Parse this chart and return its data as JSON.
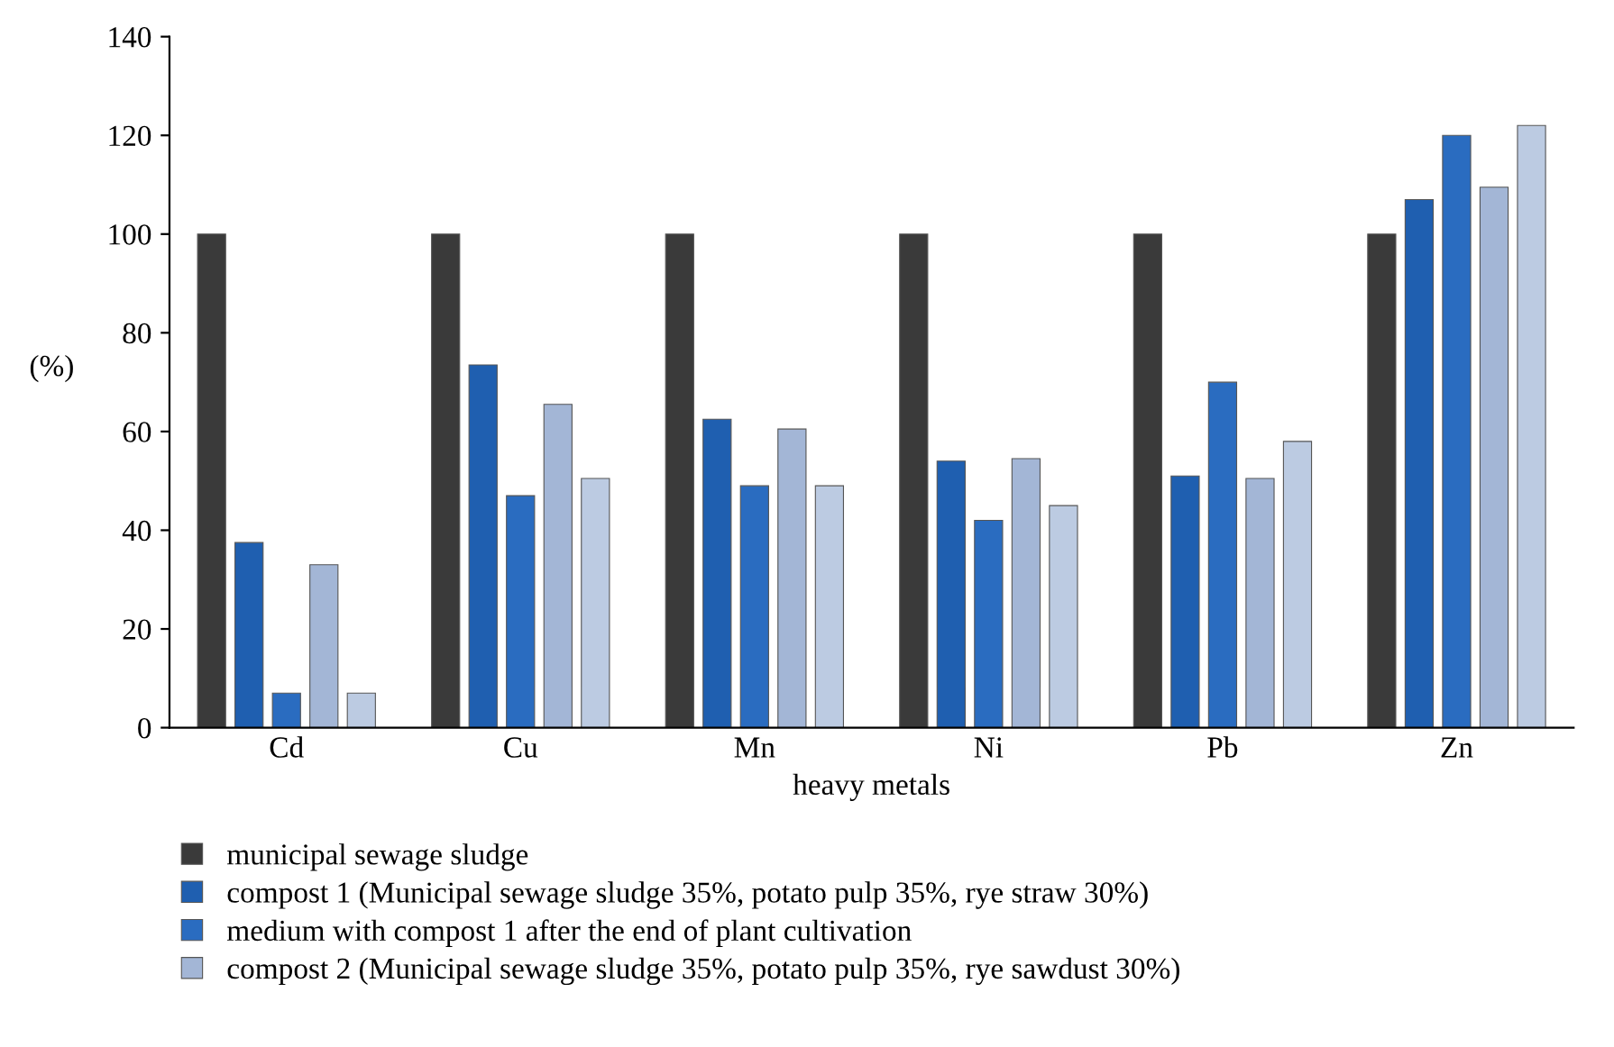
{
  "chart_data": {
    "type": "bar",
    "xlabel": "heavy metals",
    "ylabel": "(%)",
    "categories": [
      "Cd",
      "Cu",
      "Mn",
      "Ni",
      "Pb",
      "Zn"
    ],
    "series": [
      {
        "name": "municipal sewage sludge",
        "color": "#3a3a3a",
        "values": [
          100,
          100,
          100,
          100,
          100,
          100
        ]
      },
      {
        "name": "compost 1 (Municipal sewage sludge 35%, potato pulp 35%, rye straw 30%)",
        "color": "#1f5fb0",
        "values": [
          37.5,
          73.5,
          62.5,
          54,
          51,
          107
        ]
      },
      {
        "name": "medium with compost 1 after the end of plant cultivation",
        "color": "#2a6cc0",
        "values": [
          7,
          47,
          49,
          42,
          70,
          120
        ]
      },
      {
        "name": "compost 2 (Municipal sewage sludge 35%, potato pulp 35%, rye sawdust 30%)",
        "color": "#a3b6d6",
        "values": [
          33,
          65.5,
          60.5,
          54.5,
          50.5,
          109.5
        ]
      },
      {
        "color": "#bccbe2",
        "values": [
          7,
          50.5,
          49,
          45,
          58,
          122
        ]
      }
    ],
    "ylim": [
      0,
      140
    ],
    "yticks": [
      0,
      20,
      40,
      60,
      80,
      100,
      120,
      140
    ],
    "grid": false,
    "legend": "bottom"
  }
}
